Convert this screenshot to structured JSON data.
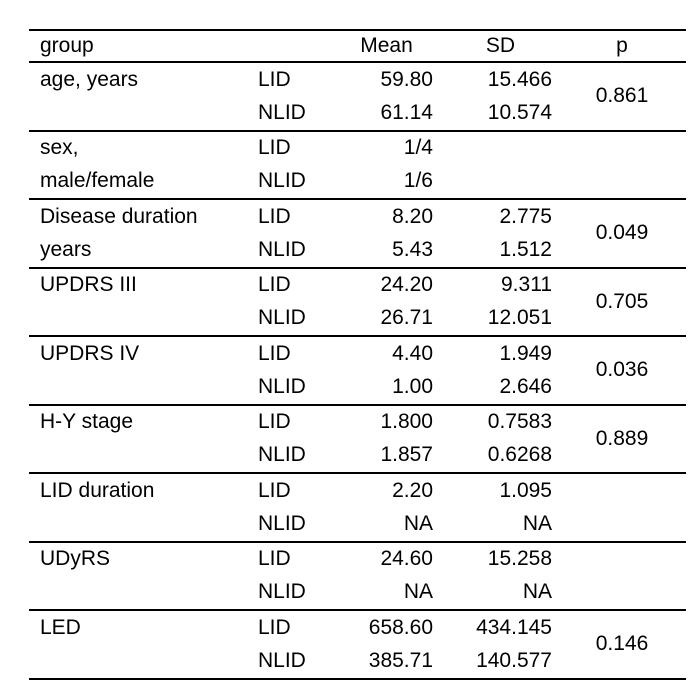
{
  "colors": {
    "background": "#ffffff",
    "text": "#000000",
    "rule": "#000000"
  },
  "table": {
    "header": {
      "group": "group",
      "mean": "Mean",
      "sd": "SD",
      "p": "p"
    },
    "sections": [
      {
        "label1": "age, years",
        "label2": "",
        "p": "0.861",
        "rows": [
          {
            "group": "LID",
            "mean": "59.80",
            "sd": "15.466"
          },
          {
            "group": "NLID",
            "mean": "61.14",
            "sd": "10.574"
          }
        ]
      },
      {
        "label1": "sex,",
        "label2": "male/female",
        "p": "",
        "rows": [
          {
            "group": "LID",
            "mean": "1/4",
            "sd": ""
          },
          {
            "group": "NLID",
            "mean": "1/6",
            "sd": ""
          }
        ]
      },
      {
        "label1": "Disease duration",
        "label2": "years",
        "p": "0.049",
        "rows": [
          {
            "group": "LID",
            "mean": "8.20",
            "sd": "2.775"
          },
          {
            "group": "NLID",
            "mean": "5.43",
            "sd": "1.512"
          }
        ]
      },
      {
        "label1": "UPDRS III",
        "label2": "",
        "p": "0.705",
        "rows": [
          {
            "group": "LID",
            "mean": "24.20",
            "sd": "9.311"
          },
          {
            "group": "NLID",
            "mean": "26.71",
            "sd": "12.051"
          }
        ]
      },
      {
        "label1": "UPDRS IV",
        "label2": "",
        "p": "0.036",
        "rows": [
          {
            "group": "LID",
            "mean": "4.40",
            "sd": "1.949"
          },
          {
            "group": "NLID",
            "mean": "1.00",
            "sd": "2.646"
          }
        ]
      },
      {
        "label1": "H-Y stage",
        "label2": "",
        "p": "0.889",
        "rows": [
          {
            "group": "LID",
            "mean": "1.800",
            "sd": "0.7583"
          },
          {
            "group": "NLID",
            "mean": "1.857",
            "sd": "0.6268"
          }
        ]
      },
      {
        "label1": "LID duration",
        "label2": "",
        "p": "",
        "rows": [
          {
            "group": "LID",
            "mean": "2.20",
            "sd": "1.095"
          },
          {
            "group": "NLID",
            "mean": "NA",
            "sd": "NA"
          }
        ]
      },
      {
        "label1": "UDyRS",
        "label2": "",
        "p": "",
        "rows": [
          {
            "group": "LID",
            "mean": "24.60",
            "sd": "15.258"
          },
          {
            "group": "NLID",
            "mean": "NA",
            "sd": "NA"
          }
        ]
      },
      {
        "label1": "LED",
        "label2": "",
        "p": "0.146",
        "rows": [
          {
            "group": "LID",
            "mean": "658.60",
            "sd": "434.145"
          },
          {
            "group": "NLID",
            "mean": "385.71",
            "sd": "140.577"
          }
        ]
      }
    ]
  }
}
